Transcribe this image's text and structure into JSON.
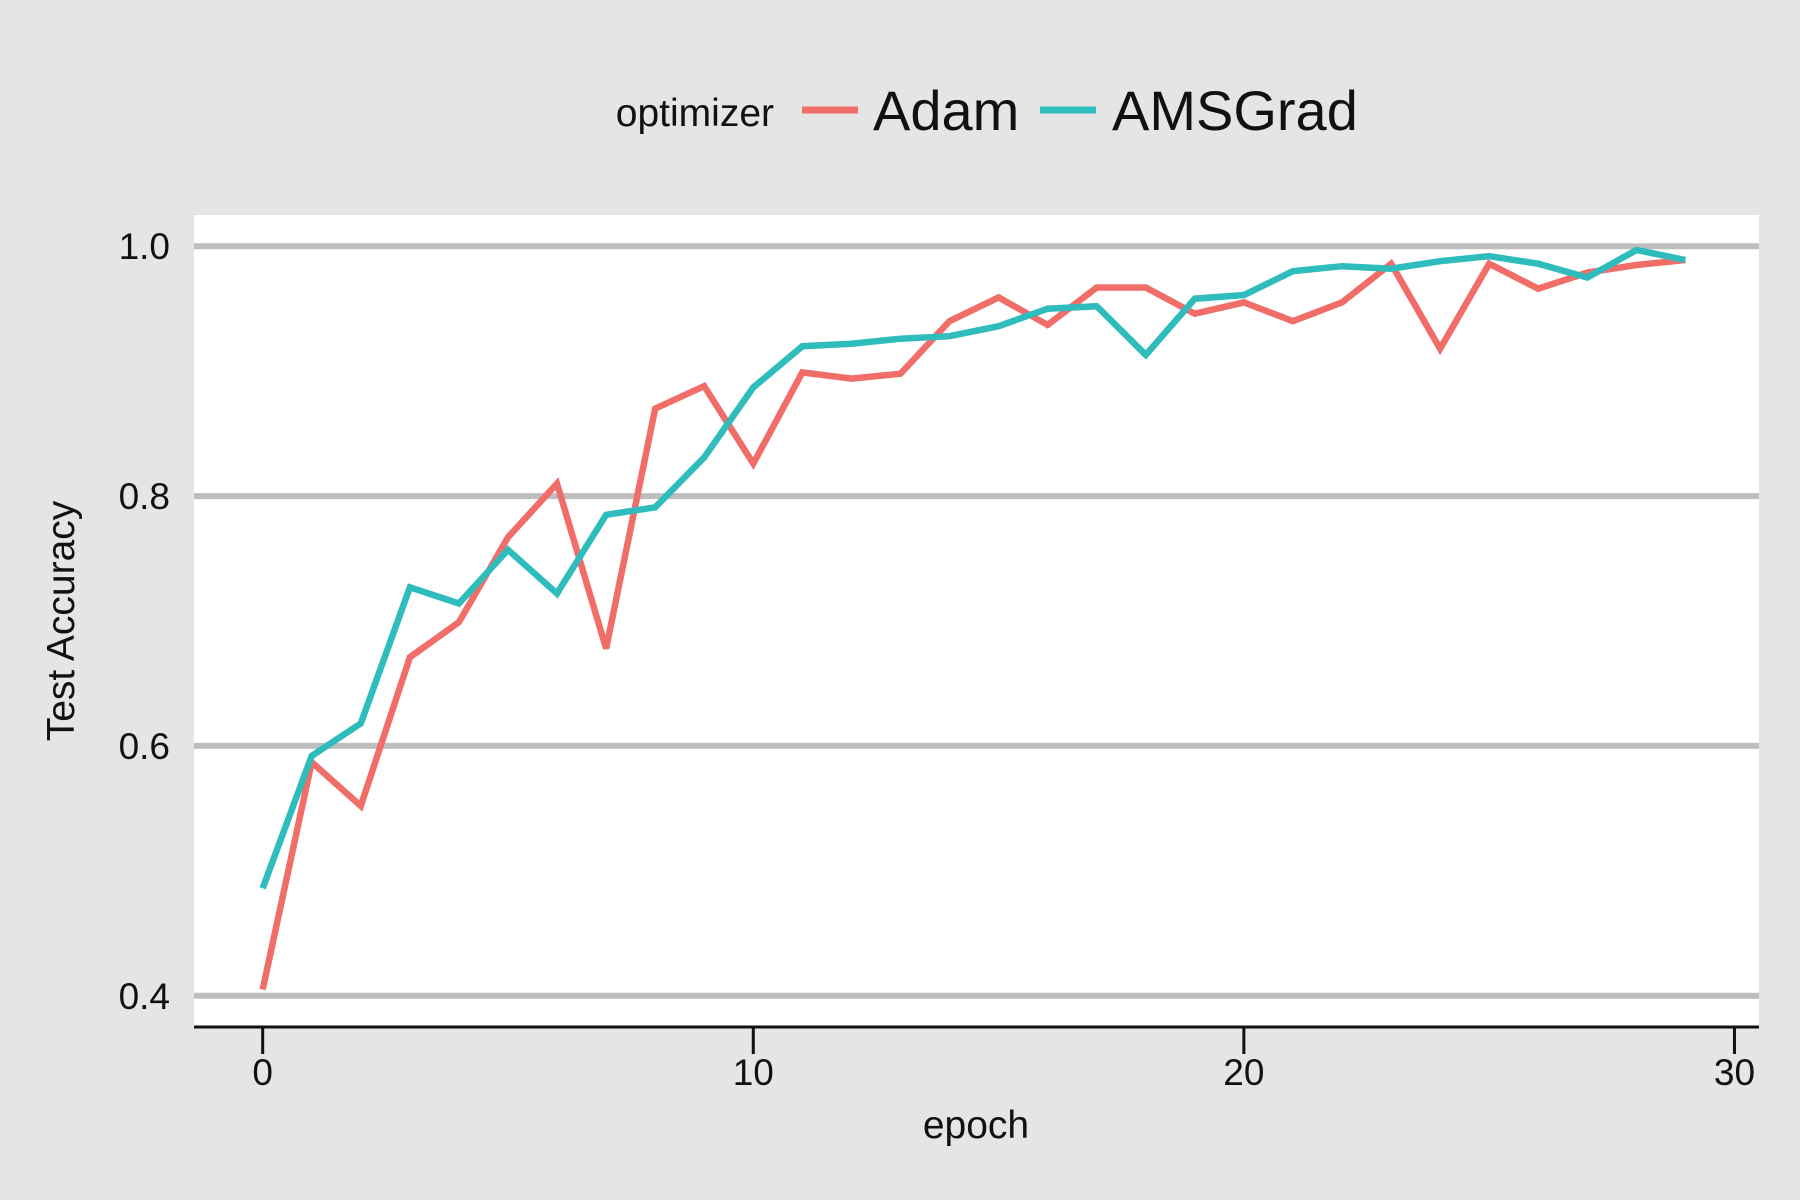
{
  "chart_data": {
    "type": "line",
    "xlabel": "epoch",
    "ylabel": "Test Accuracy",
    "xlim": [
      -1.4,
      30.5
    ],
    "ylim": [
      0.375,
      1.025
    ],
    "x_ticks": [
      0,
      10,
      20,
      30
    ],
    "y_ticks": [
      0.4,
      0.6,
      0.8,
      1.0
    ],
    "x_tick_labels": [
      "0",
      "10",
      "20",
      "30"
    ],
    "y_tick_labels": [
      "0.4",
      "0.6",
      "0.8",
      "1.0"
    ],
    "grid": "horizontal major gridlines",
    "legend": {
      "title": "optimizer",
      "position": "top"
    },
    "colors": {
      "background": "#e5e5e5",
      "panel": "#ffffff",
      "grid": "#bebebe",
      "axis": "#111111"
    },
    "x": [
      0,
      1,
      2,
      3,
      4,
      5,
      6,
      7,
      8,
      9,
      10,
      11,
      12,
      13,
      14,
      15,
      16,
      17,
      18,
      19,
      20,
      21,
      22,
      23,
      24,
      25,
      26,
      27,
      28,
      29
    ],
    "series": [
      {
        "name": "Adam",
        "color": "#f06d68",
        "values": [
          0.405,
          0.587,
          0.552,
          0.671,
          0.699,
          0.767,
          0.81,
          0.678,
          0.87,
          0.888,
          0.826,
          0.899,
          0.894,
          0.898,
          0.94,
          0.959,
          0.937,
          0.967,
          0.967,
          0.946,
          0.955,
          0.94,
          0.955,
          0.986,
          0.918,
          0.986,
          0.966,
          0.979,
          0.985,
          0.989
        ]
      },
      {
        "name": "AMSGrad",
        "color": "#2fbcbc",
        "values": [
          0.486,
          0.592,
          0.618,
          0.727,
          0.714,
          0.757,
          0.722,
          0.785,
          0.791,
          0.831,
          0.887,
          0.92,
          0.922,
          0.926,
          0.928,
          0.936,
          0.95,
          0.952,
          0.913,
          0.958,
          0.961,
          0.98,
          0.984,
          0.982,
          0.988,
          0.992,
          0.986,
          0.975,
          0.997,
          0.989
        ]
      }
    ]
  }
}
